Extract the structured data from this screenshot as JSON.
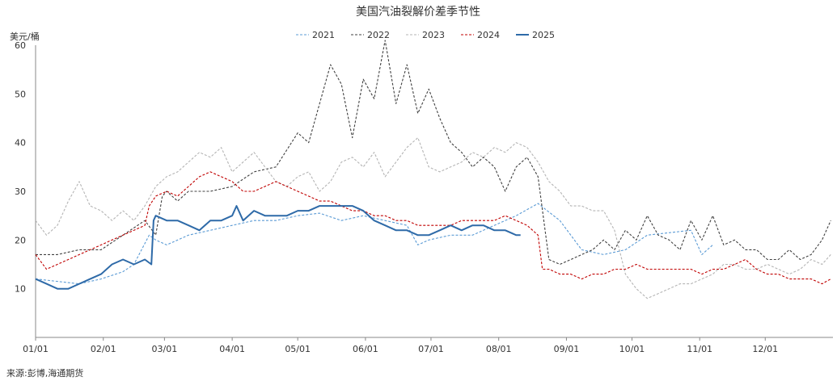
{
  "chart_data": {
    "type": "line",
    "title": "美国汽油裂解价差季节性",
    "unit_label": "美元/桶",
    "source": "来源:彭博,海通期货",
    "ylim": [
      0,
      60
    ],
    "y_ticks": [
      "60",
      "50",
      "40",
      "30",
      "20",
      "10"
    ],
    "x_ticks": [
      "01/01",
      "02/01",
      "03/01",
      "04/01",
      "05/01",
      "06/01",
      "07/01",
      "08/01",
      "09/01",
      "10/01",
      "11/01",
      "12/01"
    ],
    "legend_position": "top",
    "grid": false,
    "x_unit": "day of year",
    "series": [
      {
        "name": "2021",
        "color": "#5b9bd5",
        "dash": "3,2",
        "width": 1.1,
        "points": [
          [
            0,
            12
          ],
          [
            10,
            11.5
          ],
          [
            20,
            11
          ],
          [
            30,
            12
          ],
          [
            40,
            13.5
          ],
          [
            45,
            15
          ],
          [
            52,
            21
          ],
          [
            55,
            20
          ],
          [
            60,
            19
          ],
          [
            70,
            21
          ],
          [
            80,
            22
          ],
          [
            90,
            23
          ],
          [
            100,
            24
          ],
          [
            110,
            24
          ],
          [
            120,
            25
          ],
          [
            130,
            25.5
          ],
          [
            140,
            24
          ],
          [
            150,
            25
          ],
          [
            160,
            24
          ],
          [
            170,
            23
          ],
          [
            175,
            19
          ],
          [
            180,
            20
          ],
          [
            190,
            21
          ],
          [
            200,
            21
          ],
          [
            210,
            23
          ],
          [
            220,
            25
          ],
          [
            230,
            27.5
          ],
          [
            240,
            24
          ],
          [
            250,
            18
          ],
          [
            260,
            17
          ],
          [
            270,
            18
          ],
          [
            280,
            21
          ],
          [
            290,
            21.5
          ],
          [
            300,
            22
          ],
          [
            305,
            17
          ],
          [
            310,
            19
          ]
        ]
      },
      {
        "name": "2022",
        "color": "#404040",
        "dash": "3,2",
        "width": 1.1,
        "points": [
          [
            0,
            17
          ],
          [
            10,
            17
          ],
          [
            20,
            18
          ],
          [
            30,
            18
          ],
          [
            40,
            21
          ],
          [
            50,
            24
          ],
          [
            55,
            21
          ],
          [
            58,
            29
          ],
          [
            60,
            30
          ],
          [
            65,
            28
          ],
          [
            70,
            30
          ],
          [
            80,
            30
          ],
          [
            90,
            31
          ],
          [
            100,
            34
          ],
          [
            110,
            35
          ],
          [
            120,
            42
          ],
          [
            125,
            40
          ],
          [
            130,
            48
          ],
          [
            135,
            56
          ],
          [
            140,
            52
          ],
          [
            145,
            41
          ],
          [
            150,
            53
          ],
          [
            155,
            49
          ],
          [
            160,
            61
          ],
          [
            165,
            48
          ],
          [
            170,
            56
          ],
          [
            175,
            46
          ],
          [
            180,
            51
          ],
          [
            185,
            45
          ],
          [
            190,
            40
          ],
          [
            195,
            38
          ],
          [
            200,
            35
          ],
          [
            205,
            37
          ],
          [
            210,
            35
          ],
          [
            215,
            30
          ],
          [
            220,
            35
          ],
          [
            225,
            37
          ],
          [
            230,
            33
          ],
          [
            235,
            16
          ],
          [
            240,
            15
          ],
          [
            245,
            16
          ],
          [
            250,
            17
          ],
          [
            255,
            18
          ],
          [
            260,
            20
          ],
          [
            265,
            18
          ],
          [
            270,
            22
          ],
          [
            275,
            20
          ],
          [
            280,
            25
          ],
          [
            285,
            21
          ],
          [
            290,
            20
          ],
          [
            295,
            18
          ],
          [
            300,
            24
          ],
          [
            305,
            20
          ],
          [
            310,
            25
          ],
          [
            315,
            19
          ],
          [
            320,
            20
          ],
          [
            325,
            18
          ],
          [
            330,
            18
          ],
          [
            335,
            16
          ],
          [
            340,
            16
          ],
          [
            345,
            18
          ],
          [
            350,
            16
          ],
          [
            355,
            17
          ],
          [
            360,
            20
          ],
          [
            364,
            24
          ]
        ]
      },
      {
        "name": "2023",
        "color": "#b4b4b4",
        "dash": "3,2",
        "width": 1.1,
        "points": [
          [
            0,
            24
          ],
          [
            5,
            21
          ],
          [
            10,
            23
          ],
          [
            15,
            28
          ],
          [
            20,
            32
          ],
          [
            25,
            27
          ],
          [
            30,
            26
          ],
          [
            35,
            24
          ],
          [
            40,
            26
          ],
          [
            45,
            24
          ],
          [
            50,
            27
          ],
          [
            55,
            31
          ],
          [
            60,
            33
          ],
          [
            65,
            34
          ],
          [
            70,
            36
          ],
          [
            75,
            38
          ],
          [
            80,
            37
          ],
          [
            85,
            39
          ],
          [
            90,
            34
          ],
          [
            95,
            36
          ],
          [
            100,
            38
          ],
          [
            105,
            35
          ],
          [
            110,
            32
          ],
          [
            115,
            31
          ],
          [
            120,
            33
          ],
          [
            125,
            34
          ],
          [
            130,
            30
          ],
          [
            135,
            32
          ],
          [
            140,
            36
          ],
          [
            145,
            37
          ],
          [
            150,
            35
          ],
          [
            155,
            38
          ],
          [
            160,
            33
          ],
          [
            165,
            36
          ],
          [
            170,
            39
          ],
          [
            175,
            41
          ],
          [
            180,
            35
          ],
          [
            185,
            34
          ],
          [
            190,
            35
          ],
          [
            195,
            36
          ],
          [
            200,
            38
          ],
          [
            205,
            37
          ],
          [
            210,
            39
          ],
          [
            215,
            38
          ],
          [
            220,
            40
          ],
          [
            225,
            39
          ],
          [
            230,
            36
          ],
          [
            235,
            32
          ],
          [
            240,
            30
          ],
          [
            245,
            27
          ],
          [
            250,
            27
          ],
          [
            255,
            26
          ],
          [
            260,
            26
          ],
          [
            265,
            22
          ],
          [
            270,
            13
          ],
          [
            275,
            10
          ],
          [
            280,
            8
          ],
          [
            285,
            9
          ],
          [
            290,
            10
          ],
          [
            295,
            11
          ],
          [
            300,
            11
          ],
          [
            305,
            12
          ],
          [
            310,
            13
          ],
          [
            315,
            15
          ],
          [
            320,
            15
          ],
          [
            325,
            14
          ],
          [
            330,
            14
          ],
          [
            335,
            15
          ],
          [
            340,
            14
          ],
          [
            345,
            13
          ],
          [
            350,
            14
          ],
          [
            355,
            16
          ],
          [
            360,
            15
          ],
          [
            364,
            17
          ]
        ]
      },
      {
        "name": "2024",
        "color": "#c00000",
        "dash": "3,2",
        "width": 1.1,
        "points": [
          [
            0,
            17
          ],
          [
            5,
            14
          ],
          [
            10,
            15
          ],
          [
            15,
            16
          ],
          [
            20,
            17
          ],
          [
            25,
            18
          ],
          [
            30,
            19
          ],
          [
            35,
            20
          ],
          [
            40,
            21
          ],
          [
            45,
            22
          ],
          [
            50,
            23
          ],
          [
            52,
            27
          ],
          [
            55,
            29
          ],
          [
            60,
            30
          ],
          [
            65,
            29
          ],
          [
            70,
            31
          ],
          [
            75,
            33
          ],
          [
            80,
            34
          ],
          [
            85,
            33
          ],
          [
            90,
            32
          ],
          [
            95,
            30
          ],
          [
            100,
            30
          ],
          [
            105,
            31
          ],
          [
            110,
            32
          ],
          [
            115,
            31
          ],
          [
            120,
            30
          ],
          [
            125,
            29
          ],
          [
            130,
            28
          ],
          [
            135,
            28
          ],
          [
            140,
            27
          ],
          [
            145,
            26
          ],
          [
            150,
            26
          ],
          [
            155,
            25
          ],
          [
            160,
            25
          ],
          [
            165,
            24
          ],
          [
            170,
            24
          ],
          [
            175,
            23
          ],
          [
            180,
            23
          ],
          [
            185,
            23
          ],
          [
            190,
            23
          ],
          [
            195,
            24
          ],
          [
            200,
            24
          ],
          [
            205,
            24
          ],
          [
            210,
            24
          ],
          [
            215,
            25
          ],
          [
            220,
            24
          ],
          [
            225,
            23
          ],
          [
            230,
            21
          ],
          [
            232,
            14
          ],
          [
            235,
            14
          ],
          [
            240,
            13
          ],
          [
            245,
            13
          ],
          [
            250,
            12
          ],
          [
            255,
            13
          ],
          [
            260,
            13
          ],
          [
            265,
            14
          ],
          [
            270,
            14
          ],
          [
            275,
            15
          ],
          [
            280,
            14
          ],
          [
            285,
            14
          ],
          [
            290,
            14
          ],
          [
            295,
            14
          ],
          [
            300,
            14
          ],
          [
            305,
            13
          ],
          [
            310,
            14
          ],
          [
            315,
            14
          ],
          [
            320,
            15
          ],
          [
            325,
            16
          ],
          [
            330,
            14
          ],
          [
            335,
            13
          ],
          [
            340,
            13
          ],
          [
            345,
            12
          ],
          [
            350,
            12
          ],
          [
            355,
            12
          ],
          [
            360,
            11
          ],
          [
            364,
            12
          ]
        ]
      },
      {
        "name": "2025",
        "color": "#2e6aa8",
        "dash": "",
        "width": 2.0,
        "points": [
          [
            0,
            12
          ],
          [
            5,
            11
          ],
          [
            10,
            10
          ],
          [
            15,
            10
          ],
          [
            20,
            11
          ],
          [
            25,
            12
          ],
          [
            30,
            13
          ],
          [
            35,
            15
          ],
          [
            40,
            16
          ],
          [
            45,
            15
          ],
          [
            50,
            16
          ],
          [
            53,
            15
          ],
          [
            54,
            24
          ],
          [
            55,
            25
          ],
          [
            60,
            24
          ],
          [
            65,
            24
          ],
          [
            70,
            23
          ],
          [
            75,
            22
          ],
          [
            80,
            24
          ],
          [
            85,
            24
          ],
          [
            90,
            25
          ],
          [
            91,
            26
          ],
          [
            92,
            27
          ],
          [
            95,
            24
          ],
          [
            100,
            26
          ],
          [
            105,
            25
          ],
          [
            110,
            25
          ],
          [
            115,
            25
          ],
          [
            120,
            26
          ],
          [
            125,
            26
          ],
          [
            130,
            27
          ],
          [
            135,
            27
          ],
          [
            140,
            27
          ],
          [
            145,
            27
          ],
          [
            150,
            26
          ],
          [
            155,
            24
          ],
          [
            160,
            23
          ],
          [
            165,
            22
          ],
          [
            170,
            22
          ],
          [
            175,
            21
          ],
          [
            180,
            21
          ],
          [
            185,
            22
          ],
          [
            190,
            23
          ],
          [
            195,
            22
          ],
          [
            200,
            23
          ],
          [
            205,
            23
          ],
          [
            210,
            22
          ],
          [
            215,
            22
          ],
          [
            220,
            21
          ],
          [
            222,
            21
          ]
        ]
      }
    ]
  }
}
